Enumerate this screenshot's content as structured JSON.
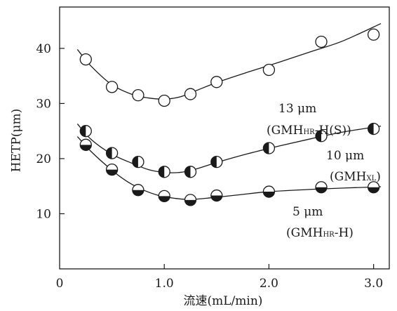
{
  "chart_data": {
    "type": "scatter",
    "title": "",
    "xlabel": "流速(mL/min)",
    "ylabel": "HETP(μm)",
    "xlim": [
      0,
      3.15
    ],
    "ylim": [
      0,
      47.5
    ],
    "x_ticks": [
      0,
      1.0,
      2.0,
      3.0
    ],
    "x_tick_labels": [
      "0",
      "1.0",
      "2.0",
      "3.0"
    ],
    "y_ticks": [
      10,
      20,
      30,
      40
    ],
    "y_tick_labels": [
      "10",
      "20",
      "30",
      "40"
    ],
    "grid": false,
    "series": [
      {
        "label_main": "13 μm",
        "label_compound": [
          "(GMH",
          "HR",
          "-H(S))"
        ],
        "marker": "open-circle",
        "x": [
          0.25,
          0.5,
          0.75,
          1.0,
          1.25,
          1.5,
          2.0,
          2.5,
          3.0
        ],
        "y": [
          38.0,
          33.0,
          31.5,
          30.5,
          31.7,
          33.9,
          36.1,
          41.2,
          42.5
        ],
        "curve_x": [
          0.17,
          0.3,
          0.5,
          0.7,
          0.85,
          1.0,
          1.15,
          1.3,
          1.5,
          1.8,
          2.1,
          2.4,
          2.7,
          3.07
        ],
        "curve_y": [
          39.8,
          36.8,
          33.4,
          31.6,
          31.0,
          30.8,
          31.2,
          32.3,
          33.8,
          35.7,
          37.5,
          39.4,
          41.3,
          44.5
        ]
      },
      {
        "label_main": "10 μm",
        "label_compound": [
          "(GMH",
          "XL",
          ")"
        ],
        "marker": "left-half-filled-circle",
        "x": [
          0.25,
          0.5,
          0.75,
          1.0,
          1.25,
          1.5,
          2.0,
          2.5,
          3.0
        ],
        "y": [
          25.0,
          21.0,
          19.4,
          17.6,
          17.6,
          19.4,
          21.9,
          24.1,
          25.4
        ],
        "curve_x": [
          0.17,
          0.3,
          0.5,
          0.7,
          0.85,
          1.0,
          1.15,
          1.3,
          1.5,
          1.8,
          2.1,
          2.4,
          2.7,
          3.07
        ],
        "curve_y": [
          26.3,
          23.5,
          20.8,
          19.1,
          18.0,
          17.5,
          17.5,
          18.1,
          19.3,
          20.9,
          22.3,
          23.6,
          24.8,
          25.9
        ]
      },
      {
        "label_main": "5 μm",
        "label_compound": [
          "(GMH",
          "HR",
          "-H)"
        ],
        "marker": "bottom-half-filled-circle",
        "x": [
          0.25,
          0.5,
          0.75,
          1.0,
          1.25,
          1.5,
          2.0,
          2.5,
          3.0
        ],
        "y": [
          22.5,
          18.0,
          14.3,
          13.2,
          12.5,
          13.3,
          14.0,
          14.8,
          14.8
        ],
        "curve_x": [
          0.17,
          0.3,
          0.5,
          0.65,
          0.8,
          0.95,
          1.1,
          1.25,
          1.45,
          1.7,
          2.0,
          2.5,
          3.07
        ],
        "curve_y": [
          24.0,
          21.3,
          17.9,
          15.8,
          14.3,
          13.3,
          12.8,
          12.6,
          12.9,
          13.4,
          14.0,
          14.5,
          14.9
        ]
      }
    ]
  }
}
